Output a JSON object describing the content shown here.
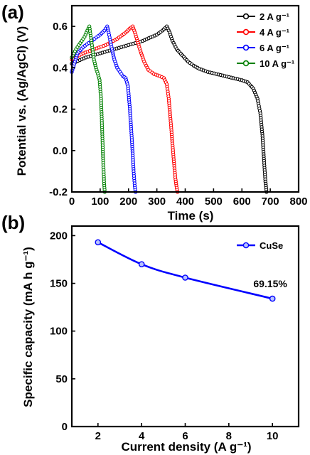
{
  "chart_data": [
    {
      "panel_label": "(a)",
      "type": "line",
      "xlabel": "Time (s)",
      "ylabel": "Potential vs. (Ag/AgCl) (V)",
      "xlim": [
        0,
        800
      ],
      "ylim": [
        -0.2,
        0.7
      ],
      "xticks": [
        "0",
        "100",
        "200",
        "300",
        "400",
        "500",
        "600",
        "700",
        "800"
      ],
      "yticks": [
        "-0.2",
        "0.0",
        "0.2",
        "0.4",
        "0.6"
      ],
      "legend_position": "top-right",
      "series": [
        {
          "name": "2 A g⁻¹",
          "color": "#000000",
          "x": [
            0,
            50,
            100,
            150,
            200,
            250,
            300,
            320,
            335,
            345,
            355,
            370,
            390,
            410,
            430,
            450,
            480,
            510,
            540,
            570,
            600,
            620,
            640,
            655,
            665,
            672,
            678,
            683,
            687
          ],
          "y": [
            0.42,
            0.45,
            0.47,
            0.49,
            0.51,
            0.53,
            0.56,
            0.58,
            0.6,
            0.57,
            0.53,
            0.49,
            0.46,
            0.43,
            0.41,
            0.395,
            0.38,
            0.37,
            0.36,
            0.35,
            0.34,
            0.33,
            0.3,
            0.25,
            0.18,
            0.08,
            -0.05,
            -0.15,
            -0.2
          ]
        },
        {
          "name": "4 A g⁻¹",
          "color": "#ff0000",
          "x": [
            0,
            40,
            80,
            120,
            160,
            190,
            205,
            215,
            225,
            240,
            255,
            270,
            290,
            310,
            325,
            335,
            342,
            350,
            358,
            365,
            370,
            373
          ],
          "y": [
            0.44,
            0.47,
            0.49,
            0.51,
            0.54,
            0.57,
            0.59,
            0.6,
            0.56,
            0.49,
            0.43,
            0.39,
            0.37,
            0.36,
            0.35,
            0.32,
            0.25,
            0.12,
            -0.02,
            -0.13,
            -0.18,
            -0.2
          ]
        },
        {
          "name": "6  A g⁻¹",
          "color": "#0000ff",
          "x": [
            0,
            20,
            40,
            60,
            80,
            100,
            115,
            125,
            130,
            140,
            150,
            160,
            170,
            180,
            190,
            198,
            205,
            212,
            218,
            222,
            225
          ],
          "y": [
            0.38,
            0.47,
            0.5,
            0.52,
            0.54,
            0.56,
            0.58,
            0.6,
            0.57,
            0.5,
            0.44,
            0.4,
            0.38,
            0.36,
            0.35,
            0.31,
            0.2,
            0.05,
            -0.1,
            -0.17,
            -0.2
          ]
        },
        {
          "name": "10 A g⁻¹",
          "color": "#008000",
          "x": [
            0,
            15,
            30,
            45,
            55,
            62,
            70,
            78,
            85,
            92,
            98,
            103,
            107,
            111,
            114,
            116
          ],
          "y": [
            0.45,
            0.49,
            0.52,
            0.55,
            0.58,
            0.6,
            0.52,
            0.44,
            0.4,
            0.37,
            0.34,
            0.25,
            0.1,
            -0.06,
            -0.16,
            -0.2
          ]
        }
      ]
    },
    {
      "panel_label": "(b)",
      "type": "line",
      "xlabel": "Current density (A g⁻¹)",
      "ylabel": "Specific capacity (mA h g⁻¹)",
      "xlim": [
        0.8,
        11.2
      ],
      "ylim": [
        0,
        210
      ],
      "xticks": [
        "2",
        "4",
        "6",
        "8",
        "10"
      ],
      "yticks": [
        "0",
        "50",
        "100",
        "150",
        "200"
      ],
      "legend_position": "top-right",
      "series": [
        {
          "name": "CuSe",
          "color": "#0000ff",
          "x": [
            2,
            4,
            6,
            10
          ],
          "y": [
            193,
            170,
            156,
            134
          ]
        }
      ],
      "annotations": [
        {
          "text": "69.15%",
          "x": 9.9,
          "y": 146
        }
      ]
    }
  ]
}
